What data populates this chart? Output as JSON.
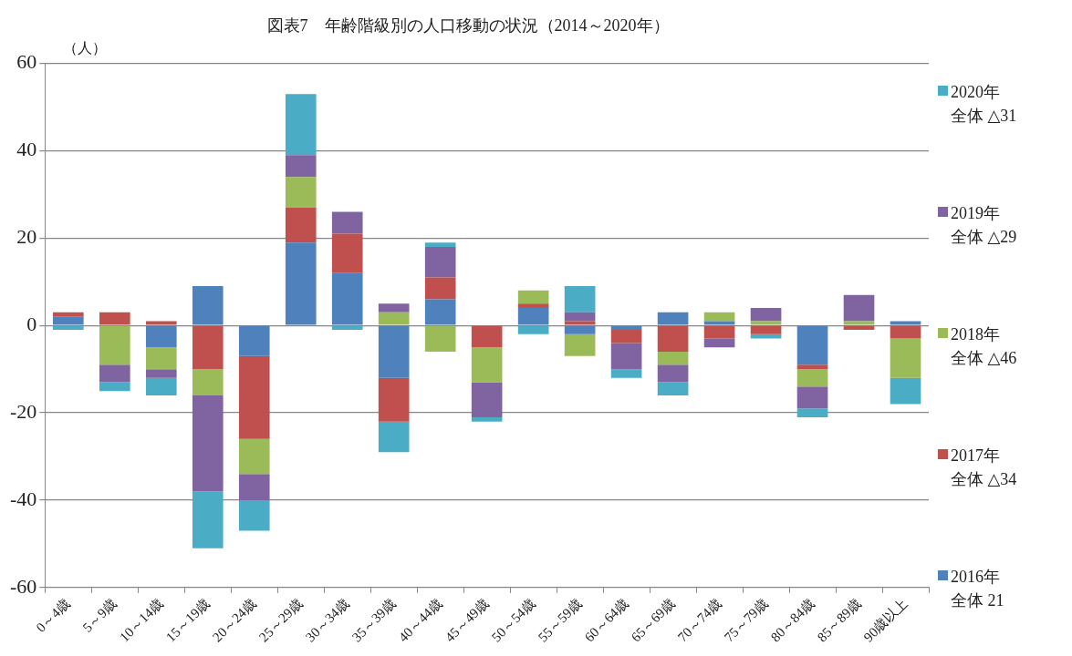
{
  "chart_data": {
    "type": "bar",
    "title": "図表7　年齢階級別の人口移動の状況（2014～2020年）",
    "ylabel": "（人）",
    "categories": [
      "0～4歳",
      "5～9歳",
      "10～14歳",
      "15～19歳",
      "20～24歳",
      "25～29歳",
      "30～34歳",
      "35～39歳",
      "40～44歳",
      "45～49歳",
      "50～54歳",
      "55～59歳",
      "60～64歳",
      "65～69歳",
      "70～74歳",
      "75～79歳",
      "80～84歳",
      "85～89歳",
      "90歳以上"
    ],
    "stacked": true,
    "ylim": [
      -60,
      60
    ],
    "yticks": [
      -60,
      -40,
      -20,
      0,
      20,
      40,
      60
    ],
    "grid": "y",
    "legend": "right",
    "annotations": [
      "全体 21",
      "全体 △34",
      "全体 △46",
      "全体 △29",
      "全体 △31"
    ],
    "series": [
      {
        "name": "2016年",
        "color": "#4f81bd",
        "values": [
          2,
          0,
          -5,
          9,
          -7,
          19,
          12,
          -12,
          6,
          0,
          4,
          -2,
          -1,
          3,
          1,
          0,
          -9,
          0,
          1
        ]
      },
      {
        "name": "2017年",
        "color": "#c0504d",
        "values": [
          1,
          3,
          1,
          -10,
          -19,
          8,
          9,
          -10,
          5,
          -5,
          1,
          1,
          -3,
          -6,
          -3,
          -2,
          -1,
          -1,
          -3
        ]
      },
      {
        "name": "2018年",
        "color": "#9bbb59",
        "values": [
          0,
          -9,
          -5,
          -6,
          -8,
          7,
          0,
          3,
          -6,
          -8,
          3,
          -5,
          0,
          -3,
          2,
          1,
          -4,
          1,
          -9
        ]
      },
      {
        "name": "2019年",
        "color": "#8064a2",
        "values": [
          0,
          -4,
          -2,
          -22,
          -6,
          5,
          5,
          2,
          7,
          -8,
          0,
          2,
          -6,
          -4,
          -2,
          3,
          -5,
          6,
          0
        ]
      },
      {
        "name": "2020年",
        "color": "#4bacc6",
        "values": [
          -1,
          -2,
          -4,
          -13,
          -7,
          14,
          -1,
          -7,
          1,
          -1,
          -2,
          6,
          -2,
          -3,
          0,
          -1,
          -2,
          0,
          -6
        ]
      }
    ]
  }
}
